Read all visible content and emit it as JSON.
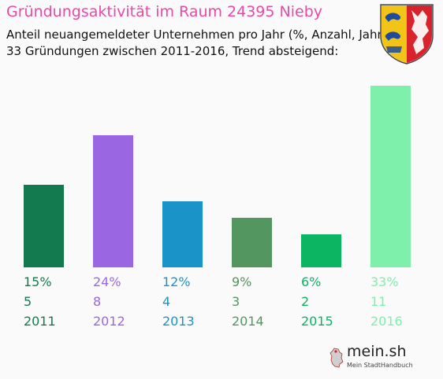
{
  "header": {
    "title": "Gründungsaktivität im Raum 24395 Nieby",
    "subtitle_line1": "Anteil neuangemeldeter Unternehmen pro Jahr (%, Anzahl, Jahr)",
    "subtitle_line2": "33 Gründungen zwischen 2011-2016, Trend absteigend:"
  },
  "crest": {
    "icon": "schleswig-holstein-coat-of-arms-icon"
  },
  "logo": {
    "name": "mein.sh",
    "tagline": "Mein StadtHandbuch",
    "icon": "germany-map-icon"
  },
  "chart_data": {
    "type": "bar",
    "categories": [
      "2011",
      "2012",
      "2013",
      "2014",
      "2015",
      "2016"
    ],
    "values": [
      15,
      24,
      12,
      9,
      6,
      33
    ],
    "value_labels": [
      "15%",
      "24%",
      "12%",
      "9%",
      "6%",
      "33%"
    ],
    "counts": [
      "5",
      "8",
      "4",
      "3",
      "2",
      "11"
    ],
    "colors": [
      "#137a50",
      "#9a66e2",
      "#1a93c8",
      "#549660",
      "#0bb562",
      "#7ef0ac"
    ],
    "ylim": [
      0,
      33
    ],
    "grid": false,
    "legend": "none"
  }
}
